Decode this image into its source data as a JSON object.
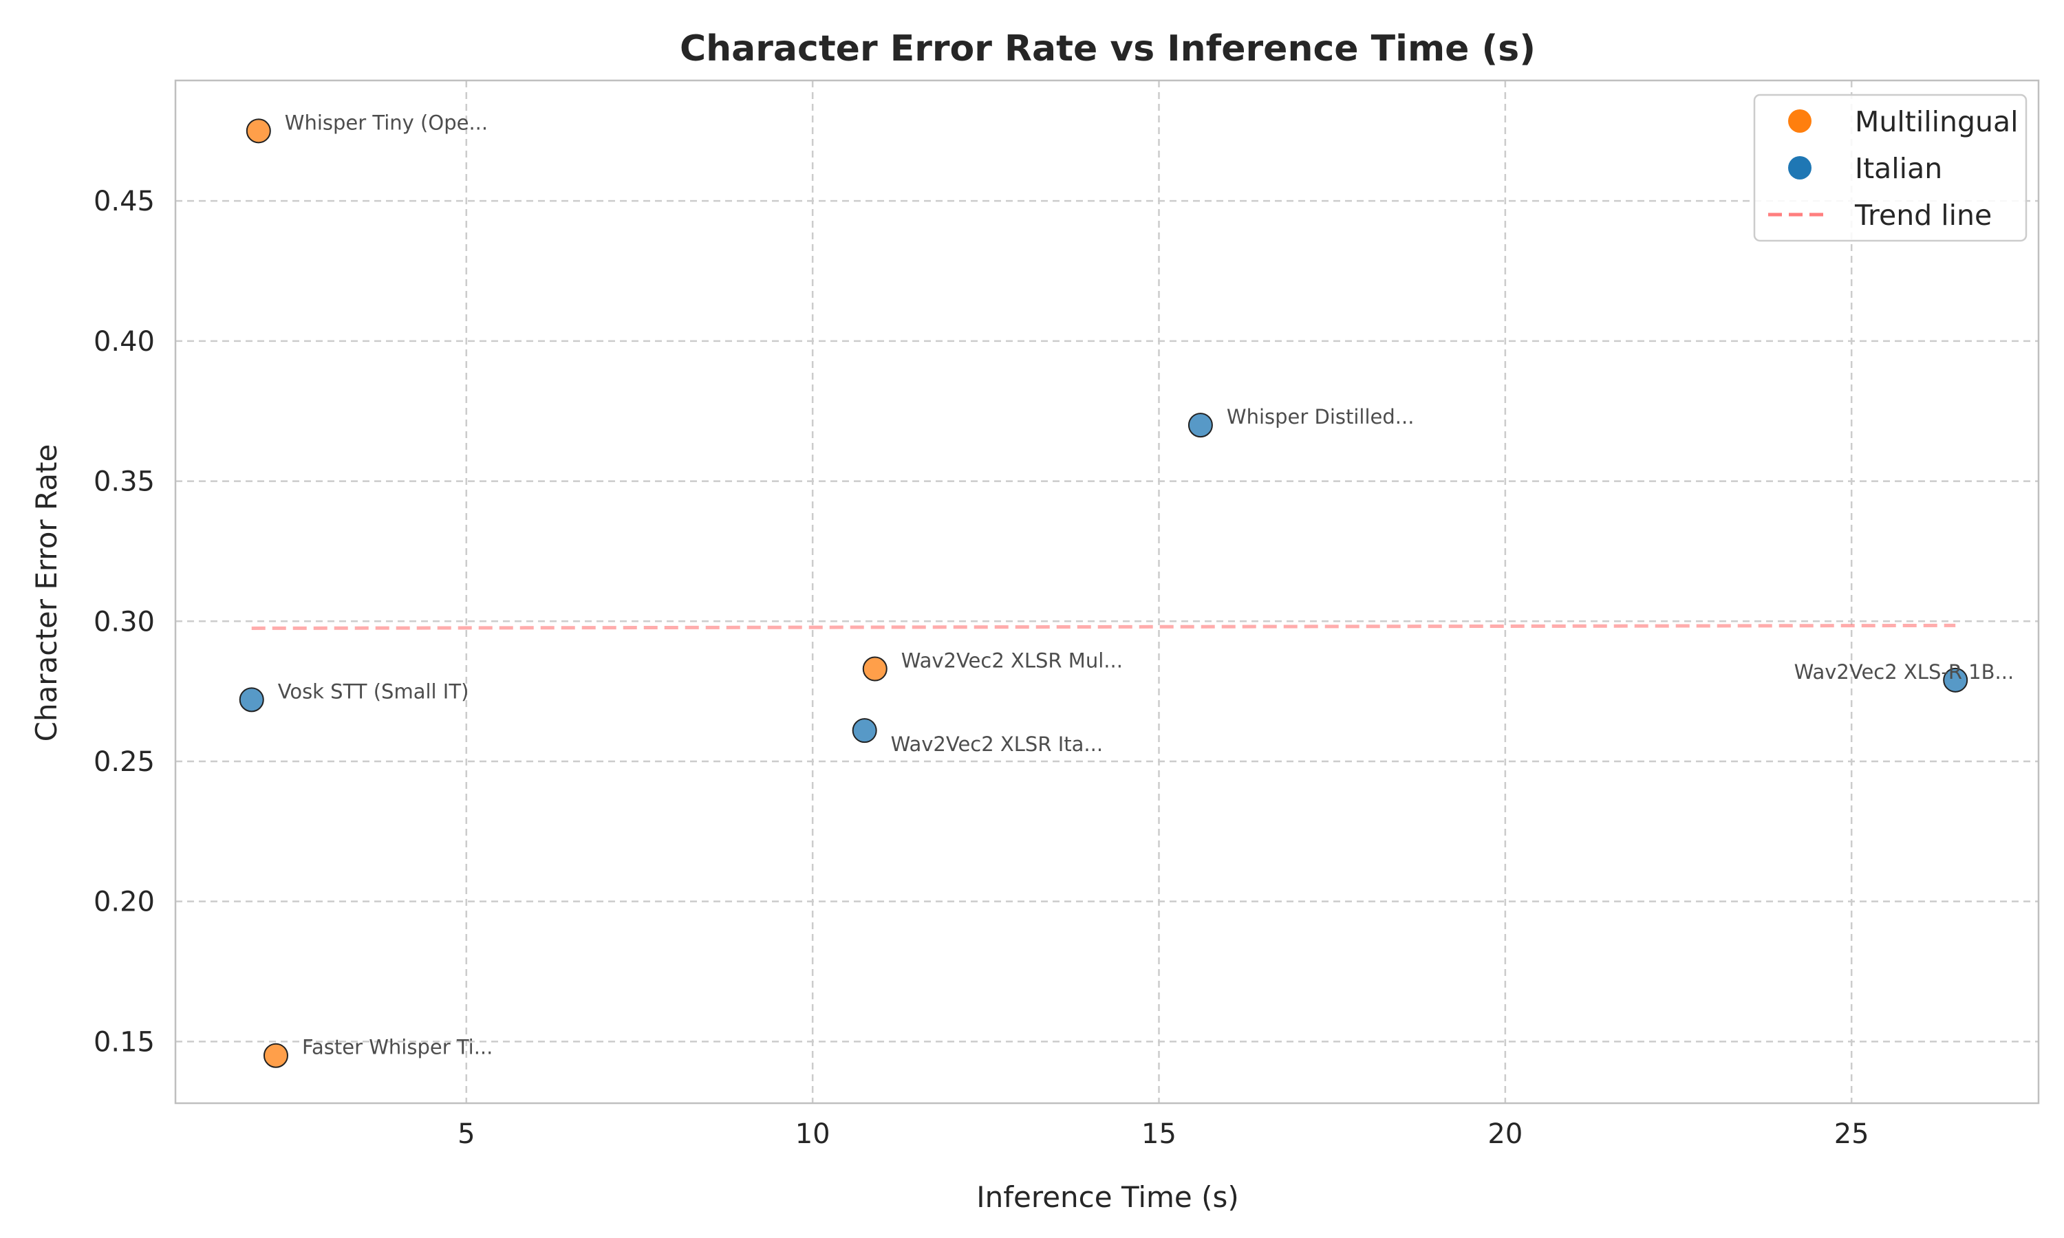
{
  "chart_data": {
    "type": "scatter",
    "title": "Character Error Rate vs Inference Time (s)",
    "xlabel": "Inference Time (s)",
    "ylabel": "Character Error Rate",
    "xlim": [
      0.8,
      27.7
    ],
    "ylim": [
      0.128,
      0.493
    ],
    "xticks": [
      5,
      10,
      15,
      20,
      25
    ],
    "xtick_labels": [
      "5",
      "10",
      "15",
      "20",
      "25"
    ],
    "yticks": [
      0.15,
      0.2,
      0.25,
      0.3,
      0.35,
      0.4,
      0.45
    ],
    "ytick_labels": [
      "0.15",
      "0.20",
      "0.25",
      "0.30",
      "0.35",
      "0.40",
      "0.45"
    ],
    "grid": true,
    "legend_position": "top-right",
    "series": [
      {
        "name": "Multilingual",
        "color": "#ff7f0e",
        "points": [
          {
            "label": "Whisper Tiny (Ope...",
            "x": 2.0,
            "y": 0.475
          },
          {
            "label": "Wav2Vec2 XLSR Mul...",
            "x": 10.9,
            "y": 0.283
          },
          {
            "label": "Faster Whisper Ti...",
            "x": 2.25,
            "y": 0.145
          }
        ]
      },
      {
        "name": "Italian",
        "color": "#1f77b4",
        "points": [
          {
            "label": "Whisper Distilled...",
            "x": 15.6,
            "y": 0.37
          },
          {
            "label": "Vosk STT (Small IT)",
            "x": 1.9,
            "y": 0.272
          },
          {
            "label": "Wav2Vec2 XLSR Ita...",
            "x": 10.75,
            "y": 0.261
          },
          {
            "label": "Wav2Vec2 XLS-R 1B...",
            "x": 26.5,
            "y": 0.279
          }
        ]
      }
    ],
    "trend_line": {
      "name": "Trend line",
      "color": "#ff7f7f",
      "x": [
        1.9,
        26.5
      ],
      "y": [
        0.2975,
        0.2985
      ]
    }
  }
}
